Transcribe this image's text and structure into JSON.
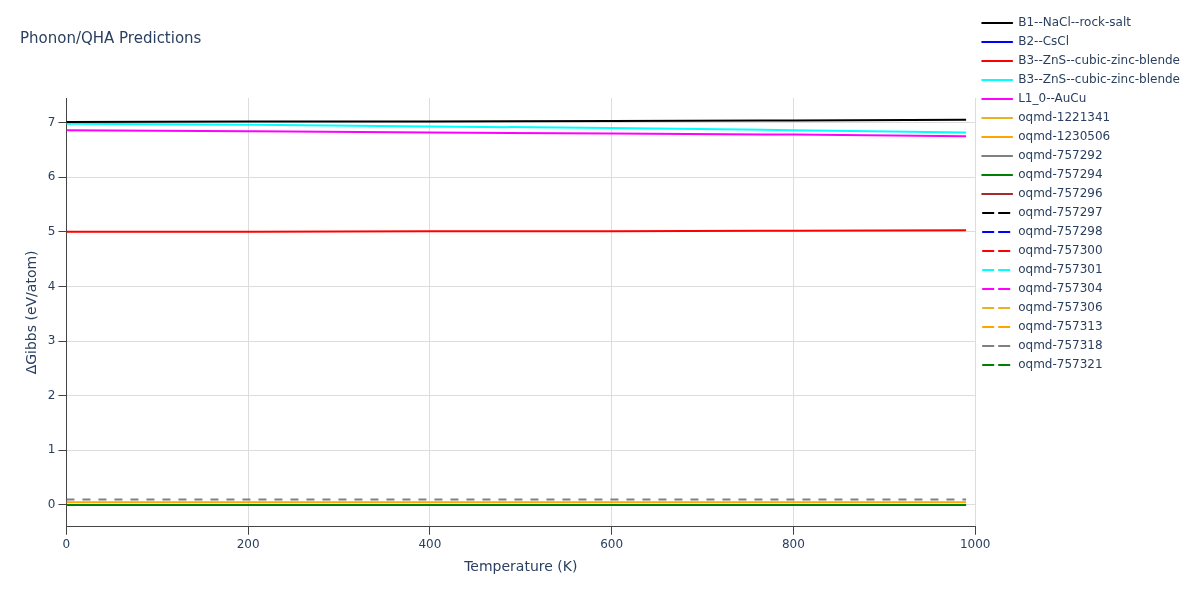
{
  "chart_data": {
    "type": "line",
    "title": "Phonon/QHA Predictions",
    "xlabel": "Temperature (K)",
    "ylabel": "ΔGibbs (eV/atom)",
    "x": [
      0,
      200,
      400,
      600,
      800,
      990
    ],
    "xlim": [
      0,
      1000
    ],
    "xticks": [
      0,
      200,
      400,
      600,
      800,
      1000
    ],
    "ylim": [
      -0.4,
      7.45
    ],
    "yticks": [
      0,
      1,
      2,
      3,
      4,
      5,
      6,
      7
    ],
    "grid": true,
    "legend": "right",
    "marker": "none",
    "series": [
      {
        "name": "B1--NaCl--rock-salt",
        "color": "#000000",
        "line_style": "solid",
        "values": [
          7.01,
          7.02,
          7.02,
          7.03,
          7.04,
          7.05
        ]
      },
      {
        "name": "B2--CsCl",
        "color": "#0000ff",
        "line_style": "solid",
        "values": [
          null,
          null,
          null,
          null,
          null,
          null
        ]
      },
      {
        "name": "B3--ZnS--cubic-zinc-blende",
        "color": "#ff0000",
        "line_style": "solid",
        "values": [
          5.0,
          5.0,
          5.01,
          5.01,
          5.02,
          5.03
        ]
      },
      {
        "name": "B3--ZnS--cubic-zinc-blende",
        "color": "#00ffff",
        "line_style": "solid",
        "values": [
          6.98,
          6.96,
          6.93,
          6.9,
          6.86,
          6.82
        ]
      },
      {
        "name": "L1_0--AuCu",
        "color": "#ff00ff",
        "line_style": "solid",
        "values": [
          6.86,
          6.84,
          6.82,
          6.8,
          6.78,
          6.75
        ]
      },
      {
        "name": "oqmd-1221341",
        "color": "#e6b422",
        "line_style": "solid",
        "values": [
          null,
          null,
          null,
          null,
          null,
          null
        ]
      },
      {
        "name": "oqmd-1230506",
        "color": "#ffa500",
        "line_style": "solid",
        "values": [
          0.05,
          0.05,
          0.05,
          0.05,
          0.05,
          0.05
        ]
      },
      {
        "name": "oqmd-757292",
        "color": "#808080",
        "line_style": "solid",
        "values": [
          null,
          null,
          null,
          null,
          null,
          null
        ]
      },
      {
        "name": "oqmd-757294",
        "color": "#008000",
        "line_style": "solid",
        "values": [
          0.0,
          0.0,
          0.0,
          0.0,
          0.0,
          0.0
        ]
      },
      {
        "name": "oqmd-757296",
        "color": "#a52a2a",
        "line_style": "solid",
        "values": [
          null,
          null,
          null,
          null,
          null,
          null
        ]
      },
      {
        "name": "oqmd-757297",
        "color": "#000000",
        "line_style": "dashed",
        "values": [
          null,
          null,
          null,
          null,
          null,
          null
        ]
      },
      {
        "name": "oqmd-757298",
        "color": "#0000ff",
        "line_style": "dashed",
        "values": [
          null,
          null,
          null,
          null,
          null,
          null
        ]
      },
      {
        "name": "oqmd-757300",
        "color": "#ff0000",
        "line_style": "dashed",
        "values": [
          null,
          null,
          null,
          null,
          null,
          null
        ]
      },
      {
        "name": "oqmd-757301",
        "color": "#00ffff",
        "line_style": "dashed",
        "values": [
          null,
          null,
          null,
          null,
          null,
          null
        ]
      },
      {
        "name": "oqmd-757304",
        "color": "#ff00ff",
        "line_style": "dashed",
        "values": [
          null,
          null,
          null,
          null,
          null,
          null
        ]
      },
      {
        "name": "oqmd-757306",
        "color": "#e6b422",
        "line_style": "dashed",
        "values": [
          null,
          null,
          null,
          null,
          null,
          null
        ]
      },
      {
        "name": "oqmd-757313",
        "color": "#ffa500",
        "line_style": "dashed",
        "values": [
          null,
          null,
          null,
          null,
          null,
          null
        ]
      },
      {
        "name": "oqmd-757318",
        "color": "#808080",
        "line_style": "dashed",
        "values": [
          0.1,
          0.1,
          0.1,
          0.1,
          0.1,
          0.1
        ]
      },
      {
        "name": "oqmd-757321",
        "color": "#008000",
        "line_style": "dashed",
        "values": [
          null,
          null,
          null,
          null,
          null,
          null
        ]
      }
    ]
  }
}
